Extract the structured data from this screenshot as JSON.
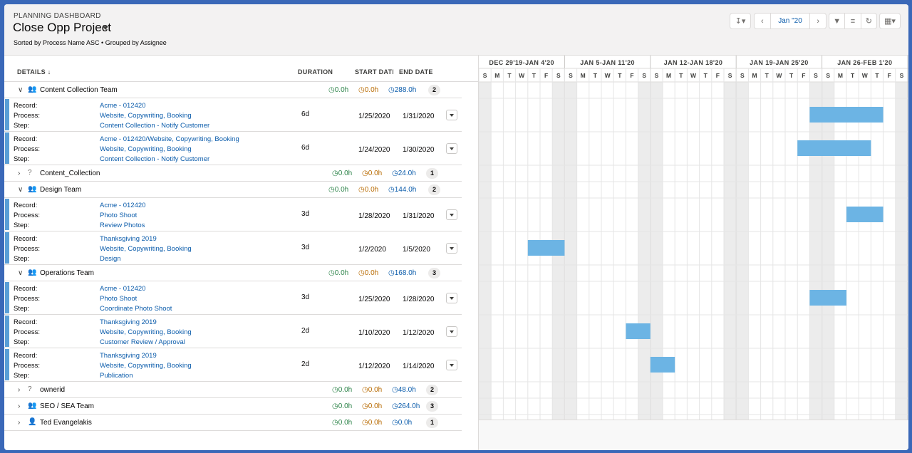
{
  "header": {
    "eyebrow": "PLANNING DASHBOARD",
    "title": "Close Opp Project",
    "subtitle": "Sorted by Process Name ASC • Grouped by Assignee",
    "month": "Jan \"20"
  },
  "columns": {
    "details": "DETAILS",
    "duration": "DURATION",
    "start": "START DATE",
    "end": "END DATE"
  },
  "labels": {
    "record": "Record:",
    "process": "Process:",
    "step": "Step:"
  },
  "timeline": {
    "weeks": [
      "DEC 29'19-JAN 4'20",
      "JAN 5-JAN 11'20",
      "JAN 12-JAN 18'20",
      "JAN 19-JAN 25'20",
      "JAN 26-FEB 1'20"
    ],
    "day_letters": [
      "S",
      "M",
      "T",
      "W",
      "T",
      "F",
      "S"
    ],
    "start_date": "2019-12-29"
  },
  "rows": [
    {
      "type": "group",
      "name": "Content Collection Team",
      "icon": "team-icon",
      "expanded": true,
      "green": "0.0h",
      "orange": "0.0h",
      "blue": "288.0h",
      "count": "2"
    },
    {
      "type": "task",
      "record": "Acme - 012420",
      "process": "Website, Copywriting, Booking",
      "step": "Content Collection - Notify Customer",
      "duration": "6d",
      "start": "1/25/2020",
      "end": "1/31/2020"
    },
    {
      "type": "task",
      "record": "Acme - 012420/Website, Copywriting, Booking",
      "process": "Website, Copywriting, Booking",
      "step": "Content Collection - Notify Customer",
      "duration": "6d",
      "start": "1/24/2020",
      "end": "1/30/2020"
    },
    {
      "type": "group",
      "name": "Content_Collection",
      "icon": "question-icon",
      "expanded": false,
      "green": "0.0h",
      "orange": "0.0h",
      "blue": "24.0h",
      "count": "1"
    },
    {
      "type": "group",
      "name": "Design Team",
      "icon": "team-icon",
      "expanded": true,
      "green": "0.0h",
      "orange": "0.0h",
      "blue": "144.0h",
      "count": "2"
    },
    {
      "type": "task",
      "record": "Acme - 012420",
      "process": "Photo Shoot",
      "step": "Review Photos",
      "duration": "3d",
      "start": "1/28/2020",
      "end": "1/31/2020"
    },
    {
      "type": "task",
      "record": "Thanksgiving 2019",
      "process": "Website, Copywriting, Booking",
      "step": "Design",
      "duration": "3d",
      "start": "1/2/2020",
      "end": "1/5/2020"
    },
    {
      "type": "group",
      "name": "Operations Team",
      "icon": "team-icon",
      "expanded": true,
      "green": "0.0h",
      "orange": "0.0h",
      "blue": "168.0h",
      "count": "3"
    },
    {
      "type": "task",
      "record": "Acme - 012420",
      "process": "Photo Shoot",
      "step": "Coordinate Photo Shoot",
      "duration": "3d",
      "start": "1/25/2020",
      "end": "1/28/2020"
    },
    {
      "type": "task",
      "record": "Thanksgiving 2019",
      "process": "Website, Copywriting, Booking",
      "step": "Customer Review / Approval",
      "duration": "2d",
      "start": "1/10/2020",
      "end": "1/12/2020"
    },
    {
      "type": "task",
      "record": "Thanksgiving 2019",
      "process": "Website, Copywriting, Booking",
      "step": "Publication",
      "duration": "2d",
      "start": "1/12/2020",
      "end": "1/14/2020"
    },
    {
      "type": "group",
      "name": "ownerid",
      "icon": "question-icon",
      "expanded": false,
      "green": "0.0h",
      "orange": "0.0h",
      "blue": "48.0h",
      "count": "2"
    },
    {
      "type": "group",
      "name": "SEO / SEA Team",
      "icon": "team-icon",
      "expanded": false,
      "green": "0.0h",
      "orange": "0.0h",
      "blue": "264.0h",
      "count": "3"
    },
    {
      "type": "group",
      "name": "Ted Evangelakis",
      "icon": "user-icon",
      "expanded": false,
      "green": "0.0h",
      "orange": "0.0h",
      "blue": "0.0h",
      "count": "1"
    }
  ],
  "colors": {
    "bar": "#6cb4e4",
    "accent": "#5a9ed6",
    "weekend": "#ececec",
    "link": "#0b5cab"
  }
}
